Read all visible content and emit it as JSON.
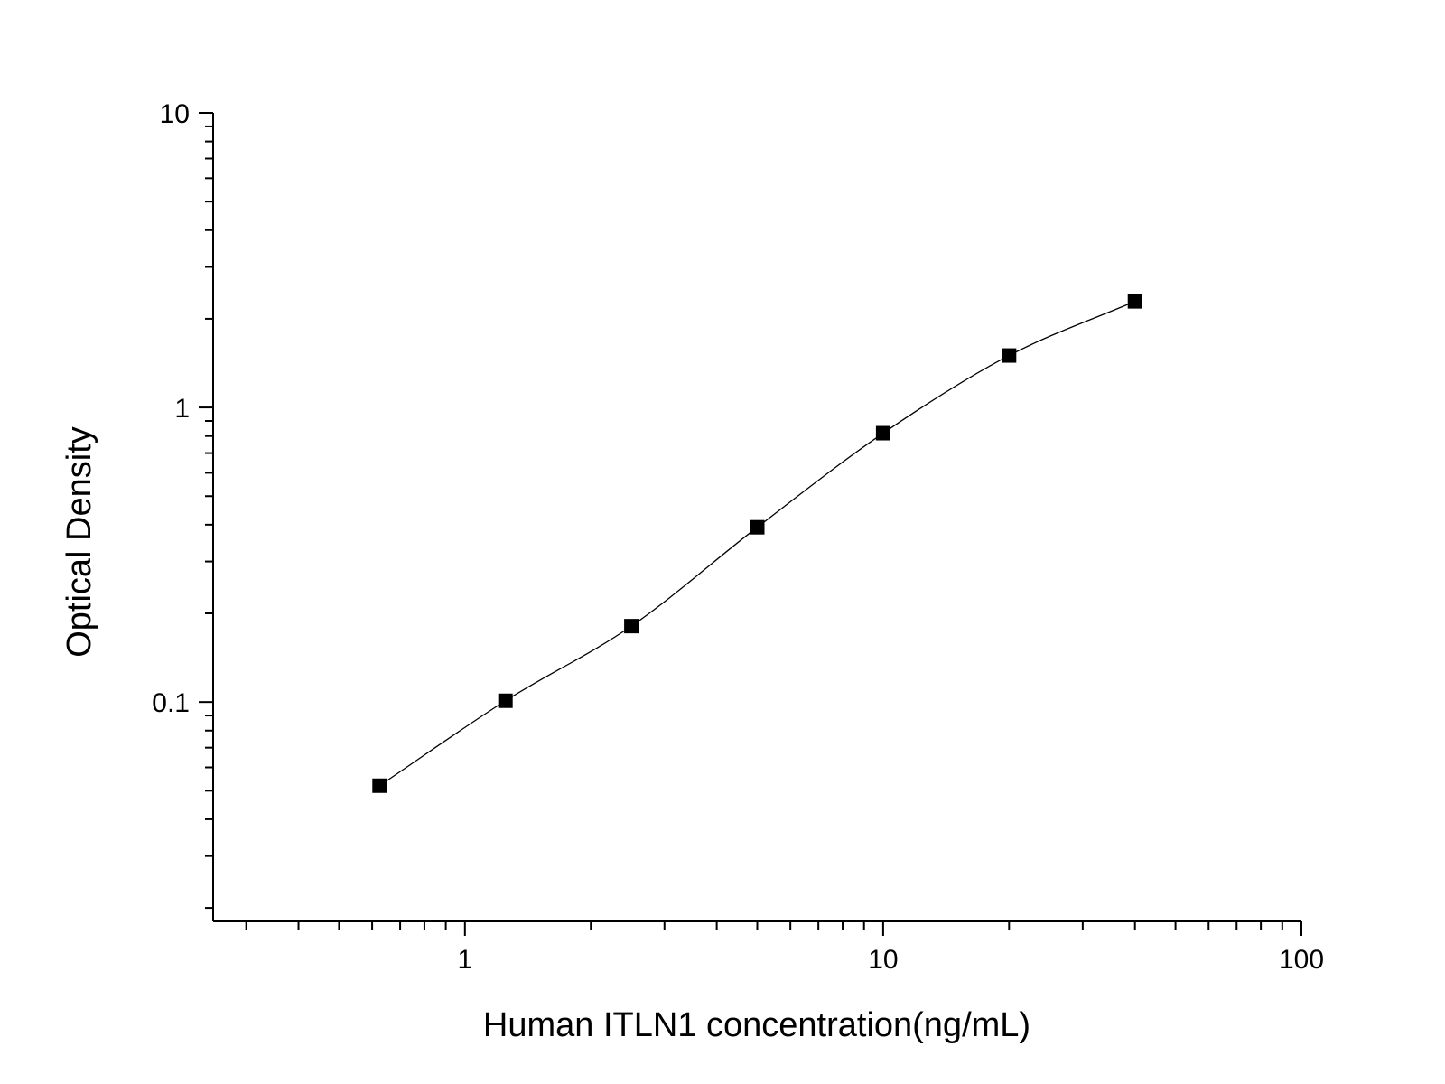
{
  "chart_data": {
    "type": "scatter",
    "title": "",
    "xlabel": "Human ITLN1 concentration(ng/mL)",
    "ylabel": "Optical Density",
    "x_scale": "log",
    "y_scale": "log",
    "xlim": [
      0.25,
      100
    ],
    "ylim": [
      0.018,
      10
    ],
    "x_ticks": [
      {
        "value": 1,
        "label": "1"
      },
      {
        "value": 10,
        "label": "10"
      },
      {
        "value": 100,
        "label": "100"
      }
    ],
    "y_ticks": [
      {
        "value": 0.1,
        "label": "0.1"
      },
      {
        "value": 1,
        "label": "1"
      },
      {
        "value": 10,
        "label": "10"
      }
    ],
    "grid": false,
    "legend": "none",
    "marker": "square",
    "marker_color": "#000000",
    "curve": "fitted",
    "series": [
      {
        "x": [
          0.625,
          1.25,
          2.5,
          5,
          10,
          20,
          40
        ],
        "y": [
          0.052,
          0.101,
          0.181,
          0.392,
          0.818,
          1.501,
          2.292
        ]
      }
    ]
  }
}
